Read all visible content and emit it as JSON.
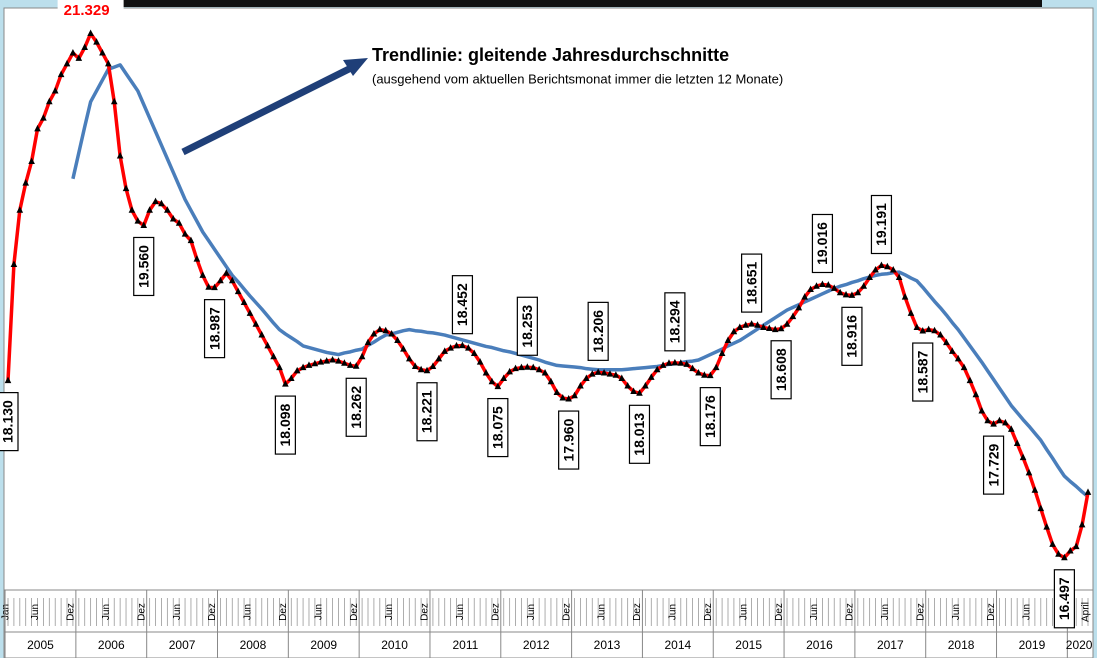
{
  "chart_data": {
    "type": "line",
    "title": "Trendlinie: gleitende Jahresdurchschnitte",
    "subtitle": "(ausgehend vom aktuellen Berichtsmonat immer die letzten 12 Monate)",
    "categories": [
      "Jan",
      null,
      null,
      null,
      null,
      "Jun",
      null,
      null,
      null,
      null,
      null,
      "Dez",
      null,
      null,
      null,
      null,
      null,
      "Jun",
      null,
      null,
      null,
      null,
      null,
      "Dez",
      null,
      null,
      null,
      null,
      null,
      "Jun",
      null,
      null,
      null,
      null,
      null,
      "Dez",
      null,
      null,
      null,
      null,
      null,
      "Jun",
      null,
      null,
      null,
      null,
      null,
      "Dez",
      null,
      null,
      null,
      null,
      null,
      "Jun",
      null,
      null,
      null,
      null,
      null,
      "Dez",
      null,
      null,
      null,
      null,
      null,
      "Jun",
      null,
      null,
      null,
      null,
      null,
      "Dez",
      null,
      null,
      null,
      null,
      null,
      "Jun",
      null,
      null,
      null,
      null,
      null,
      "Dez",
      null,
      null,
      null,
      null,
      null,
      "Jun",
      null,
      null,
      null,
      null,
      null,
      "Dez",
      null,
      null,
      null,
      null,
      null,
      "Jun",
      null,
      null,
      null,
      null,
      null,
      "Dez",
      null,
      null,
      null,
      null,
      null,
      "Jun",
      null,
      null,
      null,
      null,
      null,
      "Dez",
      null,
      null,
      null,
      null,
      null,
      "Jun",
      null,
      null,
      null,
      null,
      null,
      "Dez",
      null,
      null,
      null,
      null,
      null,
      "Jun",
      null,
      null,
      null,
      null,
      null,
      "Dez",
      null,
      null,
      null,
      null,
      null,
      "Jun",
      null,
      null,
      null,
      null,
      null,
      "Dez",
      null,
      null,
      null,
      null,
      null,
      "Jun",
      null,
      null,
      null,
      null,
      null,
      "Dez",
      null,
      null,
      null,
      null,
      null,
      "Jun",
      null,
      null,
      null,
      null,
      null,
      "Dez",
      null,
      null,
      null,
      "April"
    ],
    "years": [
      "2005",
      "2006",
      "2007",
      "2008",
      "2009",
      "2010",
      "2011",
      "2012",
      "2013",
      "2014",
      "2015",
      "2016",
      "2017",
      "2018",
      "2019",
      "2020"
    ],
    "ylim": [
      16200,
      21500
    ],
    "series": [
      {
        "color": "#ff0000",
        "marker_color": "#000000",
        "values": [
          18130,
          19200,
          19700,
          19950,
          20150,
          20450,
          20550,
          20700,
          20800,
          20950,
          21050,
          21150,
          21100,
          21200,
          21329,
          21250,
          21150,
          21050,
          20700,
          20200,
          19900,
          19700,
          19600,
          19560,
          19700,
          19780,
          19760,
          19700,
          19620,
          19580,
          19480,
          19420,
          19250,
          19100,
          18990,
          18987,
          19050,
          19120,
          19050,
          18950,
          18850,
          18750,
          18650,
          18550,
          18450,
          18350,
          18250,
          18098,
          18150,
          18220,
          18250,
          18270,
          18285,
          18300,
          18310,
          18320,
          18310,
          18290,
          18270,
          18262,
          18350,
          18480,
          18560,
          18600,
          18590,
          18560,
          18500,
          18420,
          18330,
          18260,
          18230,
          18221,
          18260,
          18330,
          18400,
          18430,
          18450,
          18452,
          18430,
          18380,
          18300,
          18200,
          18120,
          18075,
          18150,
          18210,
          18240,
          18250,
          18253,
          18250,
          18230,
          18200,
          18120,
          18020,
          17970,
          17960,
          17990,
          18080,
          18150,
          18190,
          18206,
          18200,
          18190,
          18180,
          18150,
          18080,
          18030,
          18013,
          18080,
          18160,
          18230,
          18270,
          18290,
          18294,
          18290,
          18280,
          18240,
          18200,
          18180,
          18176,
          18250,
          18380,
          18500,
          18580,
          18620,
          18640,
          18651,
          18640,
          18620,
          18610,
          18600,
          18608,
          18650,
          18720,
          18800,
          18900,
          18970,
          19000,
          19016,
          19010,
          18980,
          18940,
          18920,
          18916,
          18940,
          19000,
          19080,
          19150,
          19191,
          19180,
          19150,
          19080,
          18900,
          18750,
          18620,
          18587,
          18600,
          18590,
          18550,
          18480,
          18400,
          18330,
          18250,
          18130,
          18000,
          17850,
          17760,
          17729,
          17760,
          17740,
          17680,
          17550,
          17420,
          17280,
          17120,
          16950,
          16780,
          16620,
          16530,
          16497,
          16560,
          16600,
          16800,
          17100
        ],
        "value_labels": [
          "18.130",
          null,
          null,
          null,
          null,
          null,
          null,
          null,
          null,
          null,
          null,
          null,
          null,
          null,
          "21.329",
          null,
          null,
          null,
          null,
          null,
          null,
          null,
          null,
          "19.560",
          null,
          null,
          null,
          null,
          null,
          null,
          null,
          null,
          null,
          null,
          null,
          "18.987",
          null,
          null,
          null,
          null,
          null,
          null,
          null,
          null,
          null,
          null,
          null,
          "18.098",
          null,
          null,
          null,
          null,
          null,
          null,
          null,
          null,
          null,
          null,
          null,
          "18.262",
          null,
          null,
          null,
          null,
          null,
          null,
          null,
          null,
          null,
          null,
          null,
          "18.221",
          null,
          null,
          null,
          null,
          null,
          "18.452",
          null,
          null,
          null,
          null,
          null,
          "18.075",
          null,
          null,
          null,
          null,
          "18.253",
          null,
          null,
          null,
          null,
          null,
          null,
          "17.960",
          null,
          null,
          null,
          null,
          "18.206",
          null,
          null,
          null,
          null,
          null,
          null,
          "18.013",
          null,
          null,
          null,
          null,
          null,
          "18.294",
          null,
          null,
          null,
          null,
          null,
          "18.176",
          null,
          null,
          null,
          null,
          null,
          null,
          "18.651",
          null,
          null,
          null,
          null,
          "18.608",
          null,
          null,
          null,
          null,
          null,
          null,
          "19.016",
          null,
          null,
          null,
          null,
          "18.916",
          null,
          null,
          null,
          null,
          "19.191",
          null,
          null,
          null,
          null,
          null,
          null,
          "18.587",
          null,
          null,
          null,
          null,
          null,
          null,
          null,
          null,
          null,
          null,
          null,
          "17.729",
          null,
          null,
          null,
          null,
          null,
          null,
          null,
          null,
          null,
          null,
          null,
          "16.497",
          null,
          null,
          null,
          null
        ]
      },
      {
        "color": "#4a7ebb",
        "values": [
          null,
          null,
          null,
          null,
          null,
          null,
          null,
          null,
          null,
          null,
          null,
          19990,
          20230,
          20470,
          20700,
          20800,
          20900,
          21000,
          21020,
          21040,
          20960,
          20880,
          20800,
          20675,
          20550,
          20425,
          20300,
          20175,
          20050,
          19925,
          19800,
          19700,
          19600,
          19500,
          19420,
          19340,
          19260,
          19180,
          19100,
          19040,
          18975,
          18910,
          18850,
          18790,
          18725,
          18660,
          18600,
          18560,
          18525,
          18490,
          18450,
          18435,
          18420,
          18405,
          18390,
          18380,
          18370,
          18385,
          18395,
          18410,
          18420,
          18455,
          18485,
          18520,
          18550,
          18560,
          18575,
          18590,
          18600,
          18590,
          18585,
          18575,
          18570,
          18560,
          18550,
          18535,
          18520,
          18505,
          18490,
          18475,
          18460,
          18445,
          18435,
          18420,
          18405,
          18395,
          18380,
          18365,
          18350,
          18335,
          18320,
          18300,
          18285,
          18270,
          18265,
          18260,
          18255,
          18250,
          18240,
          18235,
          18230,
          18230,
          18230,
          18230,
          18230,
          18235,
          18240,
          18245,
          18250,
          18255,
          18260,
          18270,
          18280,
          18285,
          18295,
          18305,
          18310,
          18320,
          18345,
          18370,
          18395,
          18420,
          18450,
          18475,
          18500,
          18535,
          18570,
          18605,
          18640,
          18675,
          18710,
          18745,
          18780,
          18805,
          18830,
          18855,
          18880,
          18905,
          18930,
          18955,
          18980,
          19000,
          19015,
          19035,
          19050,
          19070,
          19085,
          19100,
          19110,
          19115,
          19125,
          19130,
          19105,
          19075,
          19050,
          18990,
          18925,
          18860,
          18800,
          18735,
          18665,
          18600,
          18525,
          18450,
          18375,
          18300,
          18220,
          18140,
          18060,
          17980,
          17900,
          17835,
          17770,
          17710,
          17645,
          17580,
          17495,
          17415,
          17330,
          17250,
          17200,
          17155,
          17105,
          17060
        ]
      }
    ]
  }
}
